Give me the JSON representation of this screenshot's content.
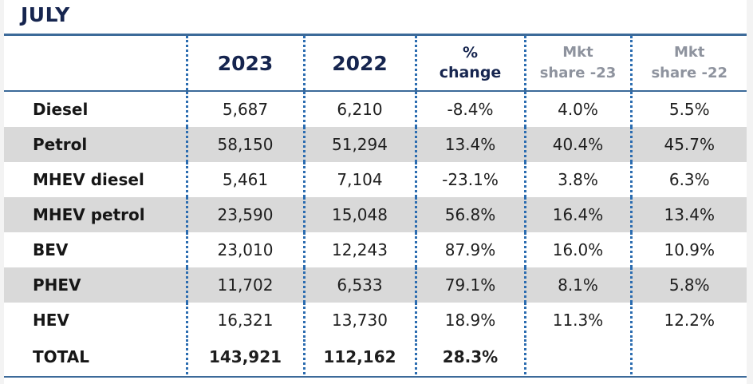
{
  "title": "JULY",
  "columns": {
    "c2023": "2023",
    "c2022": "2022",
    "pct_line1": "%",
    "pct_line2": "change",
    "mkt23_line1": "Mkt",
    "mkt23_line2": "share -23",
    "mkt22_line1": "Mkt",
    "mkt22_line2": "share -22"
  },
  "rows": [
    {
      "label": "Diesel",
      "y2023": "5,687",
      "y2022": "6,210",
      "change": "-8.4%",
      "mkt23": "4.0%",
      "mkt22": "5.5%"
    },
    {
      "label": "Petrol",
      "y2023": "58,150",
      "y2022": "51,294",
      "change": "13.4%",
      "mkt23": "40.4%",
      "mkt22": "45.7%"
    },
    {
      "label": "MHEV diesel",
      "y2023": "5,461",
      "y2022": "7,104",
      "change": "-23.1%",
      "mkt23": "3.8%",
      "mkt22": "6.3%"
    },
    {
      "label": "MHEV petrol",
      "y2023": "23,590",
      "y2022": "15,048",
      "change": "56.8%",
      "mkt23": "16.4%",
      "mkt22": "13.4%"
    },
    {
      "label": "BEV",
      "y2023": "23,010",
      "y2022": "12,243",
      "change": "87.9%",
      "mkt23": "16.0%",
      "mkt22": "10.9%"
    },
    {
      "label": "PHEV",
      "y2023": "11,702",
      "y2022": "6,533",
      "change": "79.1%",
      "mkt23": "8.1%",
      "mkt22": "5.8%"
    },
    {
      "label": "HEV",
      "y2023": "16,321",
      "y2022": "13,730",
      "change": "18.9%",
      "mkt23": "11.3%",
      "mkt22": "12.2%"
    }
  ],
  "total": {
    "label": "TOTAL",
    "y2023": "143,921",
    "y2022": "112,162",
    "change": "28.3%",
    "mkt23": "",
    "mkt22": ""
  },
  "colors": {
    "header_text": "#16254f",
    "rule": "#3c6a99",
    "dots": "#2b6cb0",
    "shade": "#d9d9d9",
    "muted_header": "#8e939e"
  }
}
